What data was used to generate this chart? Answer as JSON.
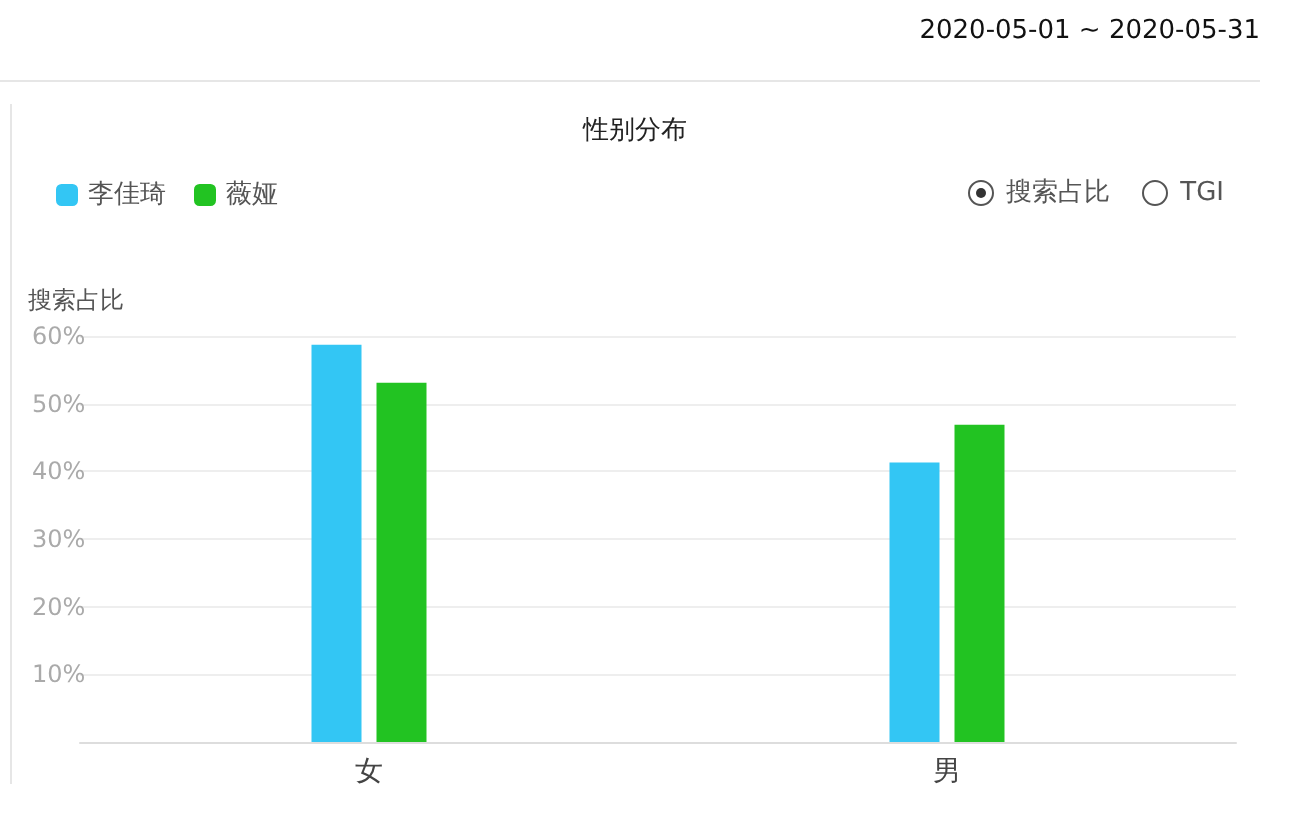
{
  "chart_data": {
    "type": "bar",
    "title": "性别分布",
    "ylabel": "搜索占比",
    "categories": [
      "女",
      "男"
    ],
    "series": [
      {
        "name": "李佳琦",
        "color": "#33c6f4",
        "values": [
          58.7,
          41.3
        ]
      },
      {
        "name": "薇娅",
        "color": "#22c322",
        "values": [
          53.1,
          46.9
        ]
      }
    ],
    "ylim": [
      0,
      60
    ],
    "yticks": [
      {
        "value": 0,
        "label": null
      },
      {
        "value": 10,
        "label": "10%"
      },
      {
        "value": 20,
        "label": "20%"
      },
      {
        "value": 30,
        "label": "30%"
      },
      {
        "value": 40,
        "label": "40%"
      },
      {
        "value": 50,
        "label": "50%"
      },
      {
        "value": 60,
        "label": "60%"
      }
    ],
    "grid": "y",
    "legend": "top left",
    "annotations": [
      "2020-05-01 ~ 2020-05-31",
      "搜索占比",
      "TGI"
    ]
  }
}
